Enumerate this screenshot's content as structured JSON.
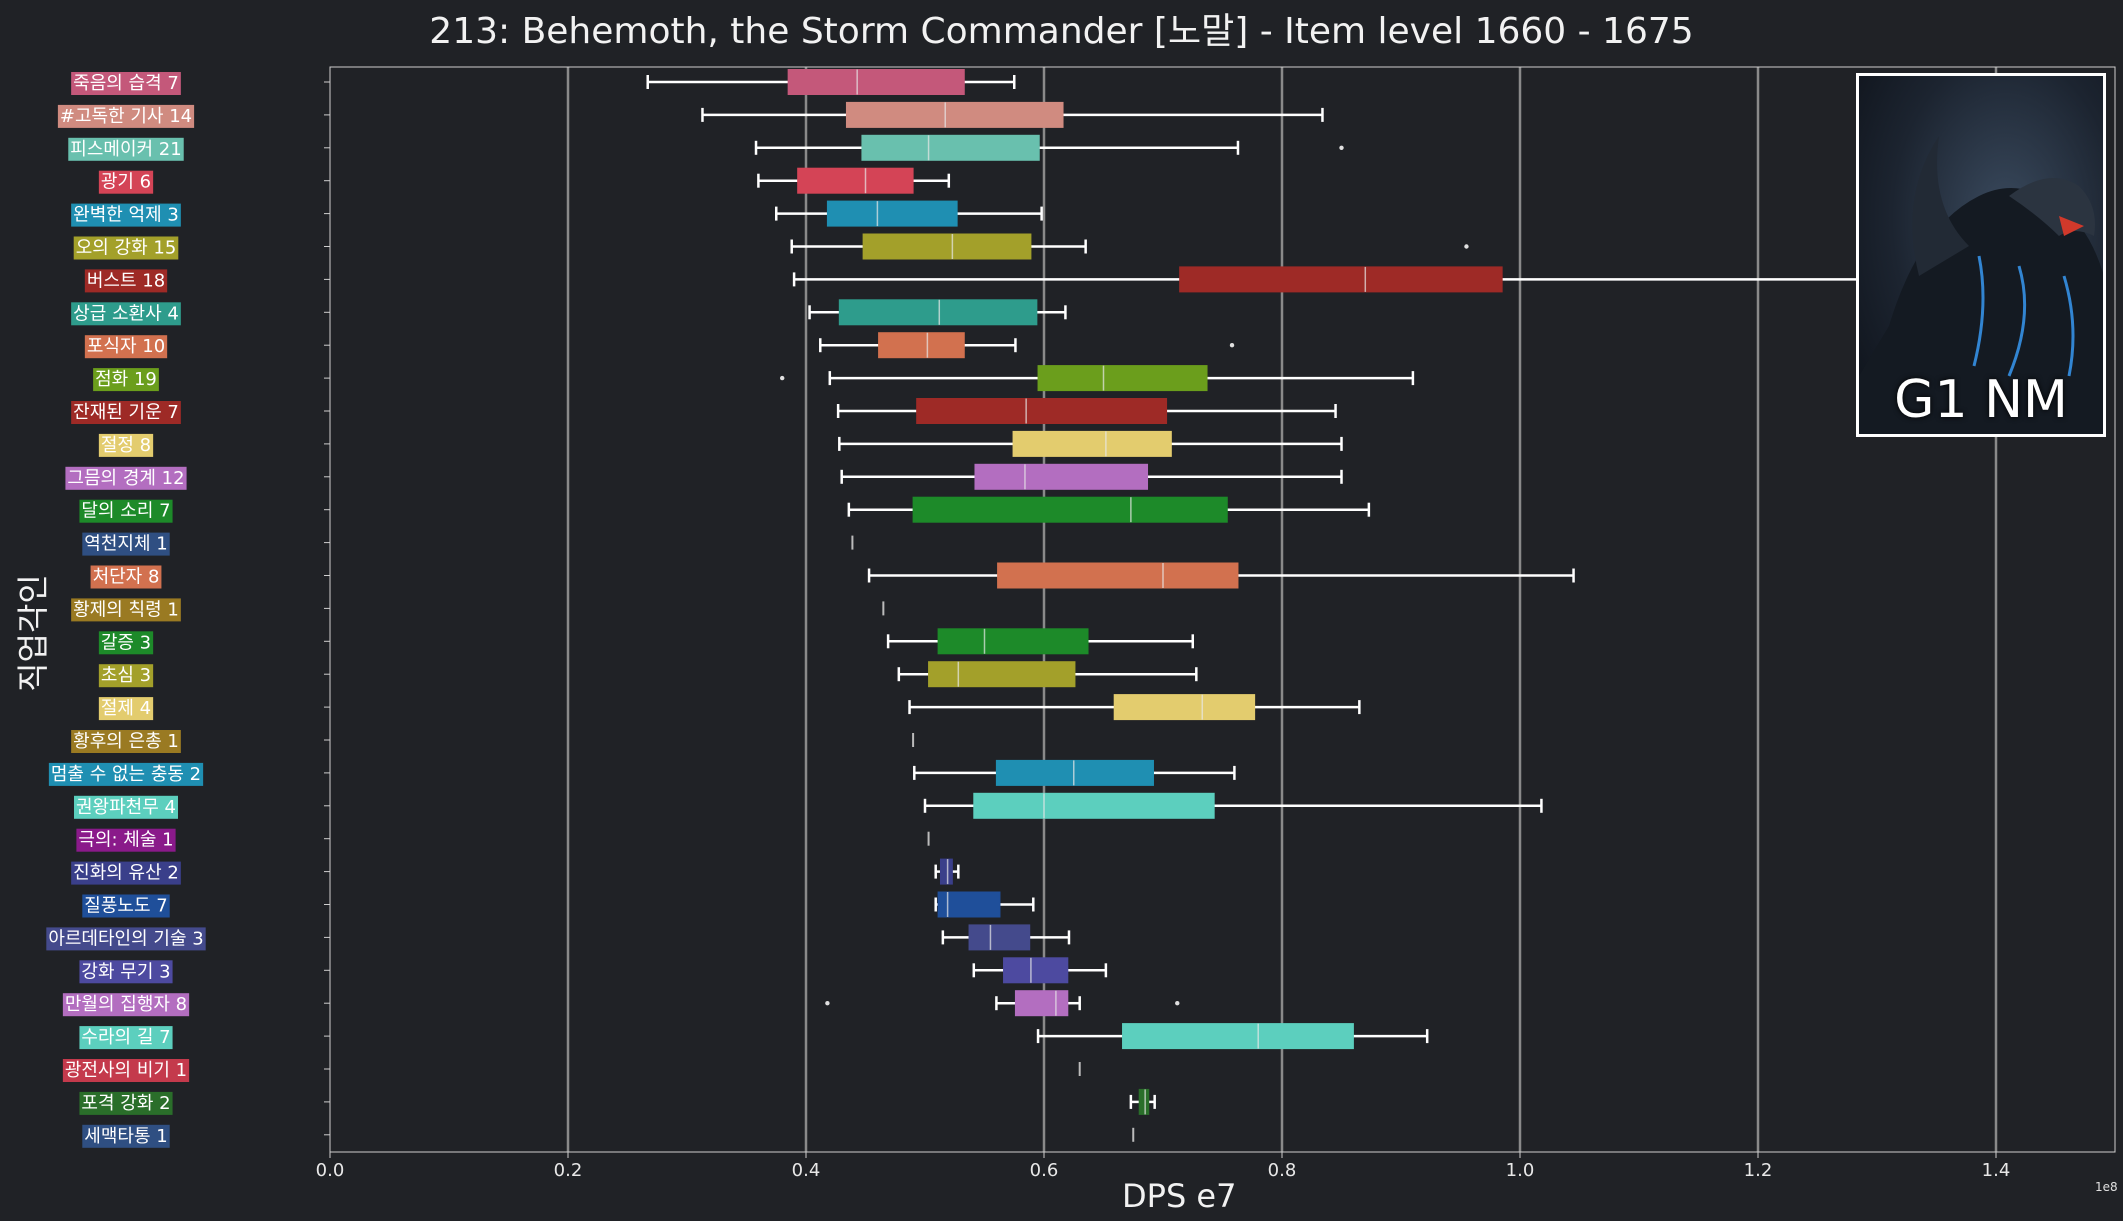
{
  "title": "213: Behemoth, the Storm Commander [노말] - Item level 1660 - 1675",
  "thumbnail": {
    "label": "G1 NM",
    "icon": "behemoth-dragon-image"
  },
  "chart_data": {
    "type": "box",
    "orientation": "horizontal",
    "xlabel": "DPS e7",
    "ylabel": "직업각인",
    "x_scale_note": "1e8",
    "xlim": [
      0,
      1.5
    ],
    "x_ticks": [
      0.0,
      0.2,
      0.4,
      0.6,
      0.8,
      1.0,
      1.2,
      1.4
    ],
    "x_tick_labels": [
      "0.0",
      "0.2",
      "0.4",
      "0.6",
      "0.8",
      "1.0",
      "1.2",
      "1.4"
    ],
    "grid": "vertical",
    "categories": [
      {
        "label": "죽음의 습격 7",
        "color": "#c4587a",
        "box": [
          0.267,
          0.385,
          0.443,
          0.533,
          0.575
        ],
        "outliers": []
      },
      {
        "label": "#고독한 기사 14",
        "color": "#d08b80",
        "box": [
          0.313,
          0.434,
          0.517,
          0.616,
          0.834
        ],
        "outliers": []
      },
      {
        "label": "피스메이커 21",
        "color": "#69c0ae",
        "box": [
          0.358,
          0.447,
          0.503,
          0.596,
          0.763
        ],
        "outliers": [
          0.85
        ]
      },
      {
        "label": "광기 6",
        "color": "#d44456",
        "box": [
          0.36,
          0.393,
          0.45,
          0.49,
          0.52
        ],
        "outliers": []
      },
      {
        "label": "완벽한 억제 3",
        "color": "#1f8fb2",
        "box": [
          0.375,
          0.418,
          0.46,
          0.527,
          0.598
        ],
        "outliers": []
      },
      {
        "label": "오의 강화 15",
        "color": "#a3a02a",
        "box": [
          0.388,
          0.448,
          0.523,
          0.589,
          0.635
        ],
        "outliers": [
          0.955
        ]
      },
      {
        "label": "버스트 18",
        "color": "#9e2a26",
        "box": [
          0.39,
          0.714,
          0.87,
          0.985,
          1.31
        ],
        "outliers": []
      },
      {
        "label": "상급 소환사 4",
        "color": "#2e9c8c",
        "box": [
          0.403,
          0.428,
          0.512,
          0.594,
          0.618
        ],
        "outliers": []
      },
      {
        "label": "포식자 10",
        "color": "#d2714f",
        "box": [
          0.412,
          0.461,
          0.502,
          0.533,
          0.576
        ],
        "outliers": [
          0.758
        ]
      },
      {
        "label": "점화 19",
        "color": "#6b9e1c",
        "box": [
          0.42,
          0.595,
          0.65,
          0.737,
          0.91
        ],
        "outliers": [
          0.38
        ]
      },
      {
        "label": "잔재된 기운 7",
        "color": "#9e2a26",
        "box": [
          0.427,
          0.493,
          0.585,
          0.703,
          0.845
        ],
        "outliers": []
      },
      {
        "label": "절정 8",
        "color": "#e3cc6e",
        "box": [
          0.428,
          0.574,
          0.652,
          0.707,
          0.85
        ],
        "outliers": []
      },
      {
        "label": "그믐의 경계 12",
        "color": "#b36ec0",
        "box": [
          0.43,
          0.542,
          0.584,
          0.687,
          0.85
        ],
        "outliers": []
      },
      {
        "label": "달의 소리 7",
        "color": "#1d8a29",
        "box": [
          0.436,
          0.49,
          0.673,
          0.754,
          0.873
        ],
        "outliers": []
      },
      {
        "label": "역천지체 1",
        "color": "#2f4f82",
        "box": [
          0.439,
          0.439,
          0.439,
          0.439,
          0.439
        ],
        "outliers": []
      },
      {
        "label": "처단자 8",
        "color": "#d2714f",
        "box": [
          0.453,
          0.561,
          0.7,
          0.763,
          1.045
        ],
        "outliers": []
      },
      {
        "label": "황제의 칙령 1",
        "color": "#9a7a22",
        "box": [
          0.465,
          0.465,
          0.465,
          0.465,
          0.465
        ],
        "outliers": []
      },
      {
        "label": "갈증 3",
        "color": "#1d8a29",
        "box": [
          0.469,
          0.511,
          0.55,
          0.637,
          0.725
        ],
        "outliers": []
      },
      {
        "label": "초심 3",
        "color": "#a3a02a",
        "box": [
          0.478,
          0.503,
          0.528,
          0.626,
          0.728
        ],
        "outliers": []
      },
      {
        "label": "절제 4",
        "color": "#e3cc6e",
        "box": [
          0.487,
          0.659,
          0.733,
          0.777,
          0.865
        ],
        "outliers": []
      },
      {
        "label": "황후의 은총 1",
        "color": "#9a7a22",
        "box": [
          0.49,
          0.49,
          0.49,
          0.49,
          0.49
        ],
        "outliers": []
      },
      {
        "label": "멈출 수 없는 충동 2",
        "color": "#1f8fb2",
        "box": [
          0.491,
          0.56,
          0.625,
          0.692,
          0.76
        ],
        "outliers": []
      },
      {
        "label": "권왕파천무 4",
        "color": "#5ccfbe",
        "box": [
          0.5,
          0.541,
          0.6,
          0.743,
          1.018
        ],
        "outliers": []
      },
      {
        "label": "극의: 체술 1",
        "color": "#8a1a8a",
        "box": [
          0.503,
          0.503,
          0.503,
          0.503,
          0.503
        ],
        "outliers": []
      },
      {
        "label": "진화의 유산 2",
        "color": "#3a3f8a",
        "box": [
          0.509,
          0.513,
          0.519,
          0.523,
          0.528
        ],
        "outliers": []
      },
      {
        "label": "질풍노도 7",
        "color": "#1f4f9a",
        "box": [
          0.509,
          0.511,
          0.519,
          0.563,
          0.591
        ],
        "outliers": []
      },
      {
        "label": "아르데타인의 기술 3",
        "color": "#444a8c",
        "box": [
          0.515,
          0.537,
          0.555,
          0.588,
          0.621
        ],
        "outliers": []
      },
      {
        "label": "강화 무기 3",
        "color": "#4d4aa0",
        "box": [
          0.541,
          0.566,
          0.589,
          0.62,
          0.652
        ],
        "outliers": []
      },
      {
        "label": "만월의 집행자 8",
        "color": "#b36ec0",
        "box": [
          0.56,
          0.576,
          0.61,
          0.62,
          0.63
        ],
        "outliers": [
          0.418,
          0.712
        ]
      },
      {
        "label": "수라의 길 7",
        "color": "#5ccfbe",
        "box": [
          0.595,
          0.666,
          0.78,
          0.86,
          0.922
        ],
        "outliers": []
      },
      {
        "label": "광전사의 비기 1",
        "color": "#c43a4c",
        "box": [
          0.63,
          0.63,
          0.63,
          0.63,
          0.63
        ],
        "outliers": []
      },
      {
        "label": "포격 강화 2",
        "color": "#2a6e2a",
        "box": [
          0.673,
          0.68,
          0.685,
          0.688,
          0.693
        ],
        "outliers": []
      },
      {
        "label": "세맥타통 1",
        "color": "#2f4f82",
        "box": [
          0.675,
          0.675,
          0.675,
          0.675,
          0.675
        ],
        "outliers": []
      }
    ]
  }
}
